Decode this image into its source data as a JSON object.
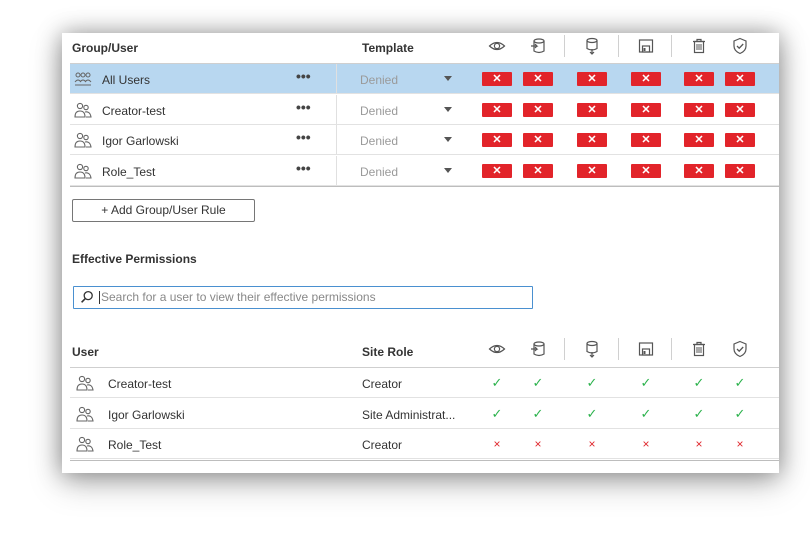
{
  "rules": {
    "col_group_user": "Group/User",
    "col_template": "Template",
    "perm_icons": [
      "eye-icon",
      "connect-icon",
      "download-datasource-icon",
      "save-icon",
      "delete-icon",
      "set-permissions-icon"
    ],
    "rows": [
      {
        "name": "All Users",
        "template": "Denied",
        "more": "•••",
        "selected": true,
        "icon": "group-icon",
        "perms": [
          "✕",
          "✕",
          "✕",
          "✕",
          "✕",
          "✕"
        ]
      },
      {
        "name": "Creator-test",
        "template": "Denied",
        "more": "•••",
        "selected": false,
        "icon": "users-icon",
        "perms": [
          "✕",
          "✕",
          "✕",
          "✕",
          "✕",
          "✕"
        ]
      },
      {
        "name": "Igor Garlowski",
        "template": "Denied",
        "more": "•••",
        "selected": false,
        "icon": "users-icon",
        "perms": [
          "✕",
          "✕",
          "✕",
          "✕",
          "✕",
          "✕"
        ]
      },
      {
        "name": "Role_Test",
        "template": "Denied",
        "more": "•••",
        "selected": false,
        "icon": "users-icon",
        "perms": [
          "✕",
          "✕",
          "✕",
          "✕",
          "✕",
          "✕"
        ]
      }
    ],
    "add_button": "+ Add Group/User Rule"
  },
  "effective": {
    "title": "Effective Permissions",
    "search_placeholder": "Search for a user to view their effective permissions",
    "col_user": "User",
    "col_site_role": "Site Role",
    "rows": [
      {
        "name": "Creator-test",
        "role": "Creator",
        "perms": [
          "✓",
          "✓",
          "✓",
          "✓",
          "✓",
          "✓"
        ]
      },
      {
        "name": "Igor Garlowski",
        "role": "Site Administrat...",
        "perms": [
          "✓",
          "✓",
          "✓",
          "✓",
          "✓",
          "✓"
        ]
      },
      {
        "name": "Role_Test",
        "role": "Creator",
        "perms": [
          "×",
          "×",
          "×",
          "×",
          "×",
          "×"
        ]
      }
    ]
  },
  "colors": {
    "selected_row": "#b8d7f0",
    "deny": "#e2242a",
    "allow": "#2bb24c",
    "search_border": "#4a90d0"
  }
}
